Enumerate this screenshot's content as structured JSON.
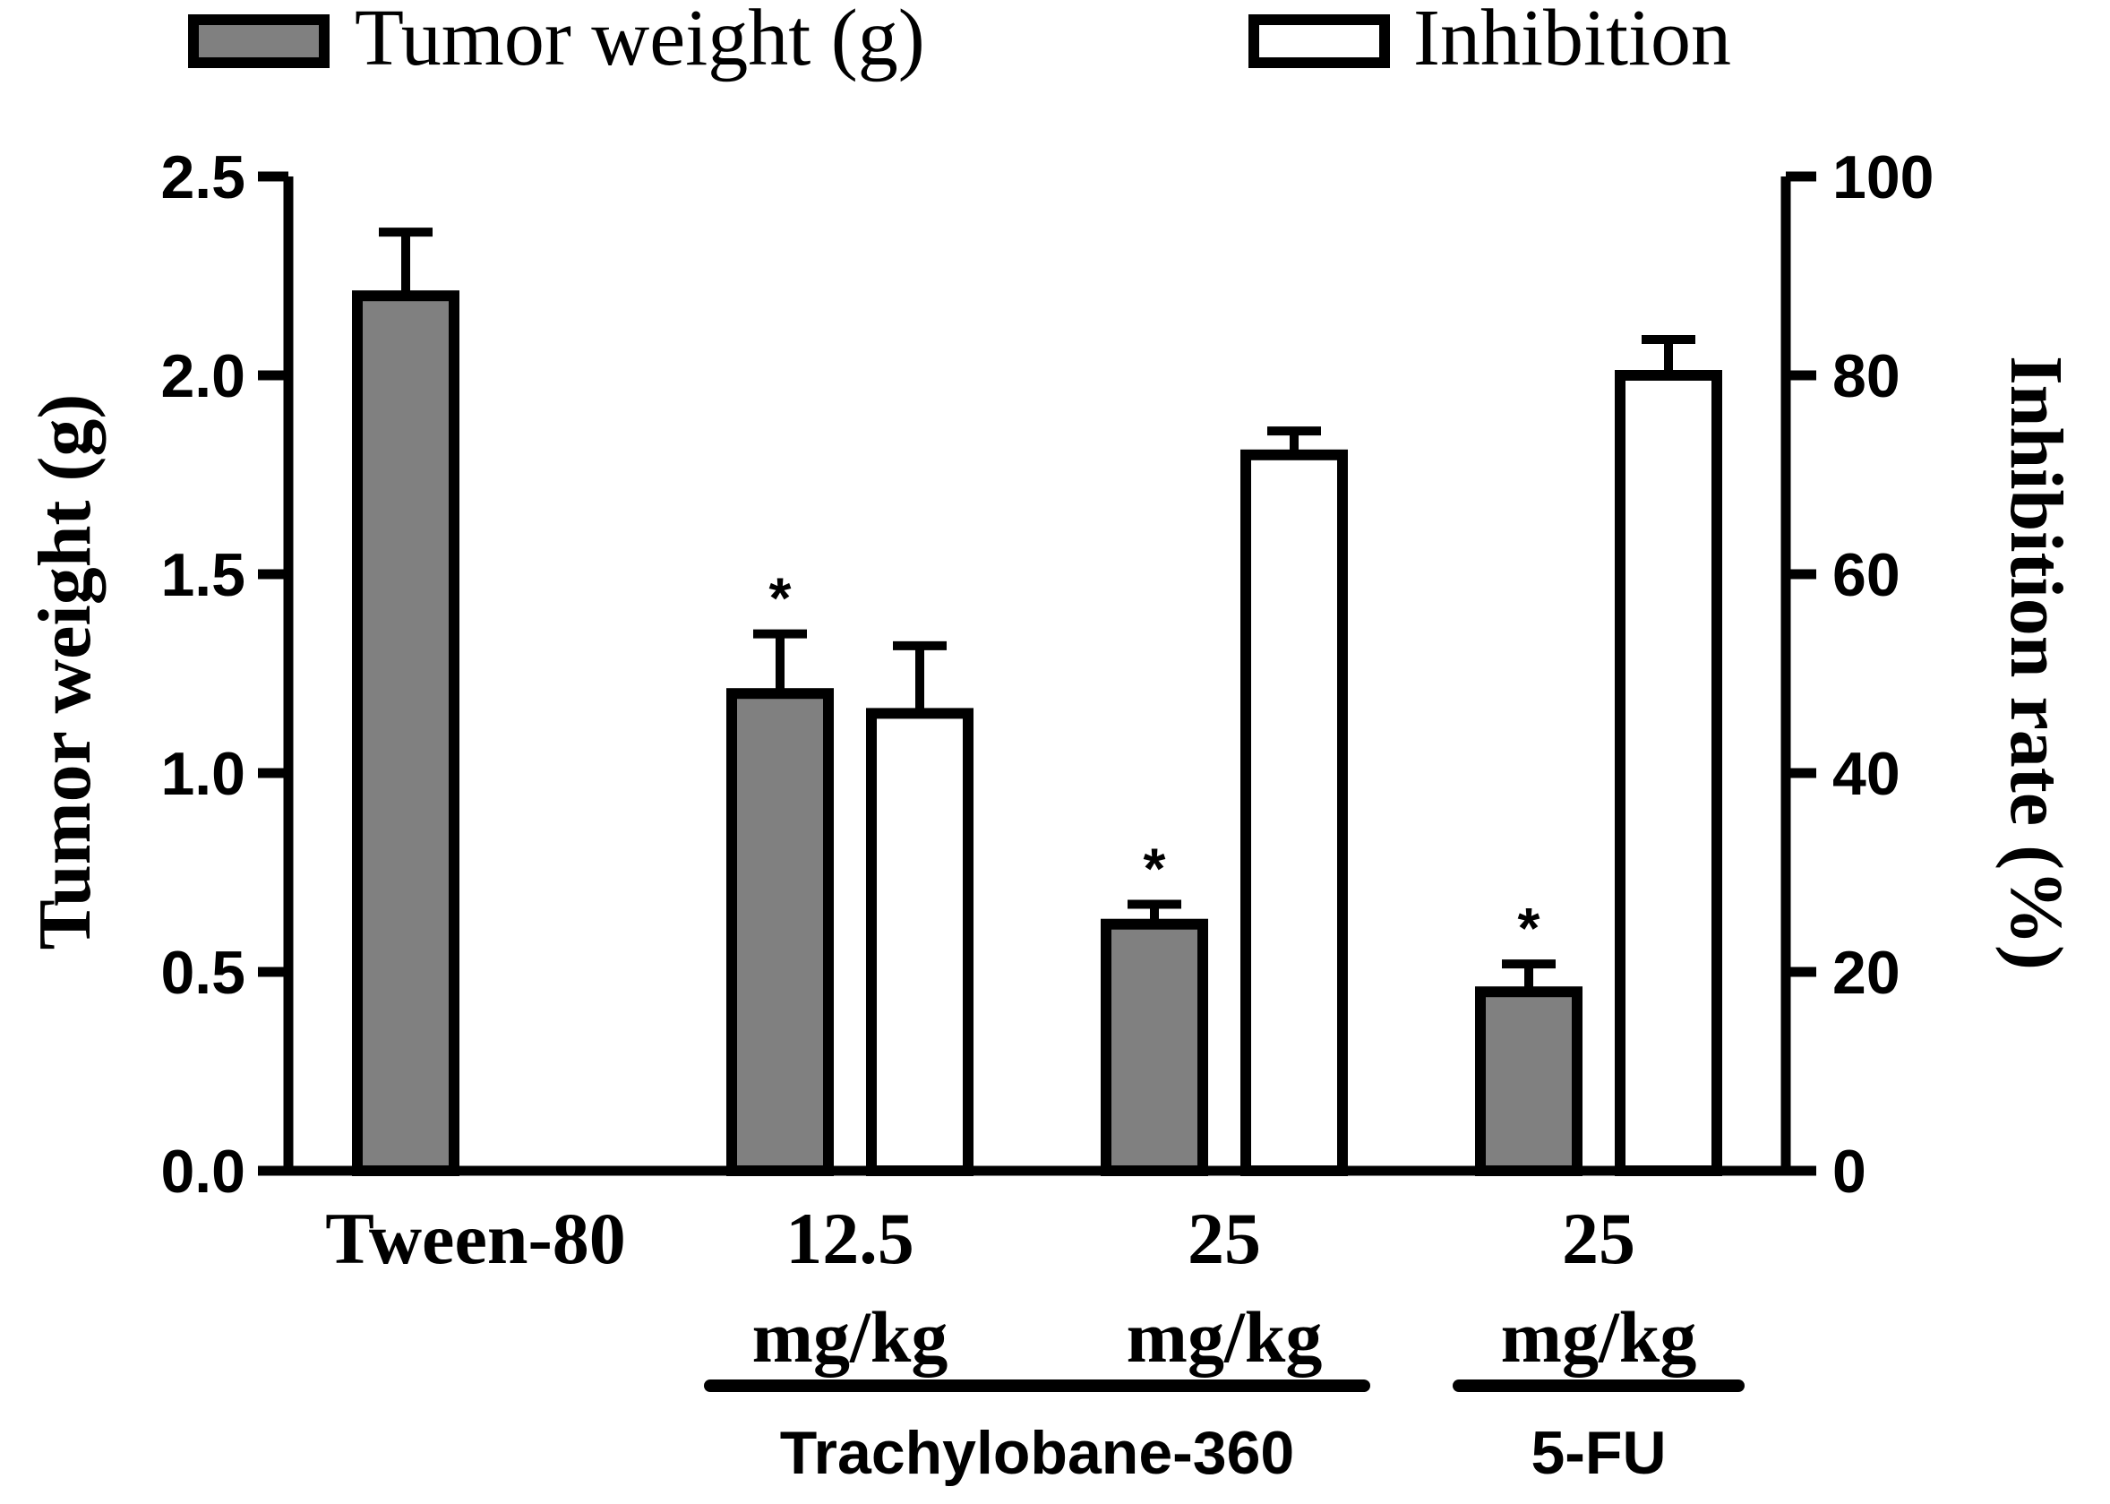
{
  "chart_data": {
    "type": "bar",
    "categories": [
      {
        "line1": "Tween-80",
        "line2": ""
      },
      {
        "line1": "12.5",
        "line2": "mg/kg"
      },
      {
        "line1": "25",
        "line2": "mg/kg"
      },
      {
        "line1": "25",
        "line2": "mg/kg"
      }
    ],
    "series": [
      {
        "name": "Tumor weight (g)",
        "axis": "left",
        "color": "#808080",
        "values": [
          2.2,
          1.2,
          0.62,
          0.45
        ],
        "errors": [
          0.16,
          0.15,
          0.05,
          0.07
        ],
        "significance": [
          "",
          "*",
          "*",
          "*"
        ]
      },
      {
        "name": "Inhibition",
        "axis": "right",
        "color": "#ffffff",
        "values": [
          null,
          46,
          72,
          80
        ],
        "errors": [
          null,
          6.8,
          2.4,
          3.6
        ]
      }
    ],
    "left_axis": {
      "label": "Tumor weight (g)",
      "min": 0,
      "max": 2.5,
      "ticks": [
        "0.0",
        "0.5",
        "1.0",
        "1.5",
        "2.0",
        "2.5"
      ]
    },
    "right_axis": {
      "label": "Inhibition rate (%)",
      "min": 0,
      "max": 100,
      "ticks": [
        "0",
        "20",
        "40",
        "60",
        "80",
        "100"
      ]
    },
    "groups": [
      {
        "label": "Trachylobane-360",
        "categories": [
          1,
          2
        ]
      },
      {
        "label": "5-FU",
        "categories": [
          3
        ]
      }
    ],
    "legend": {
      "position": "top"
    }
  }
}
